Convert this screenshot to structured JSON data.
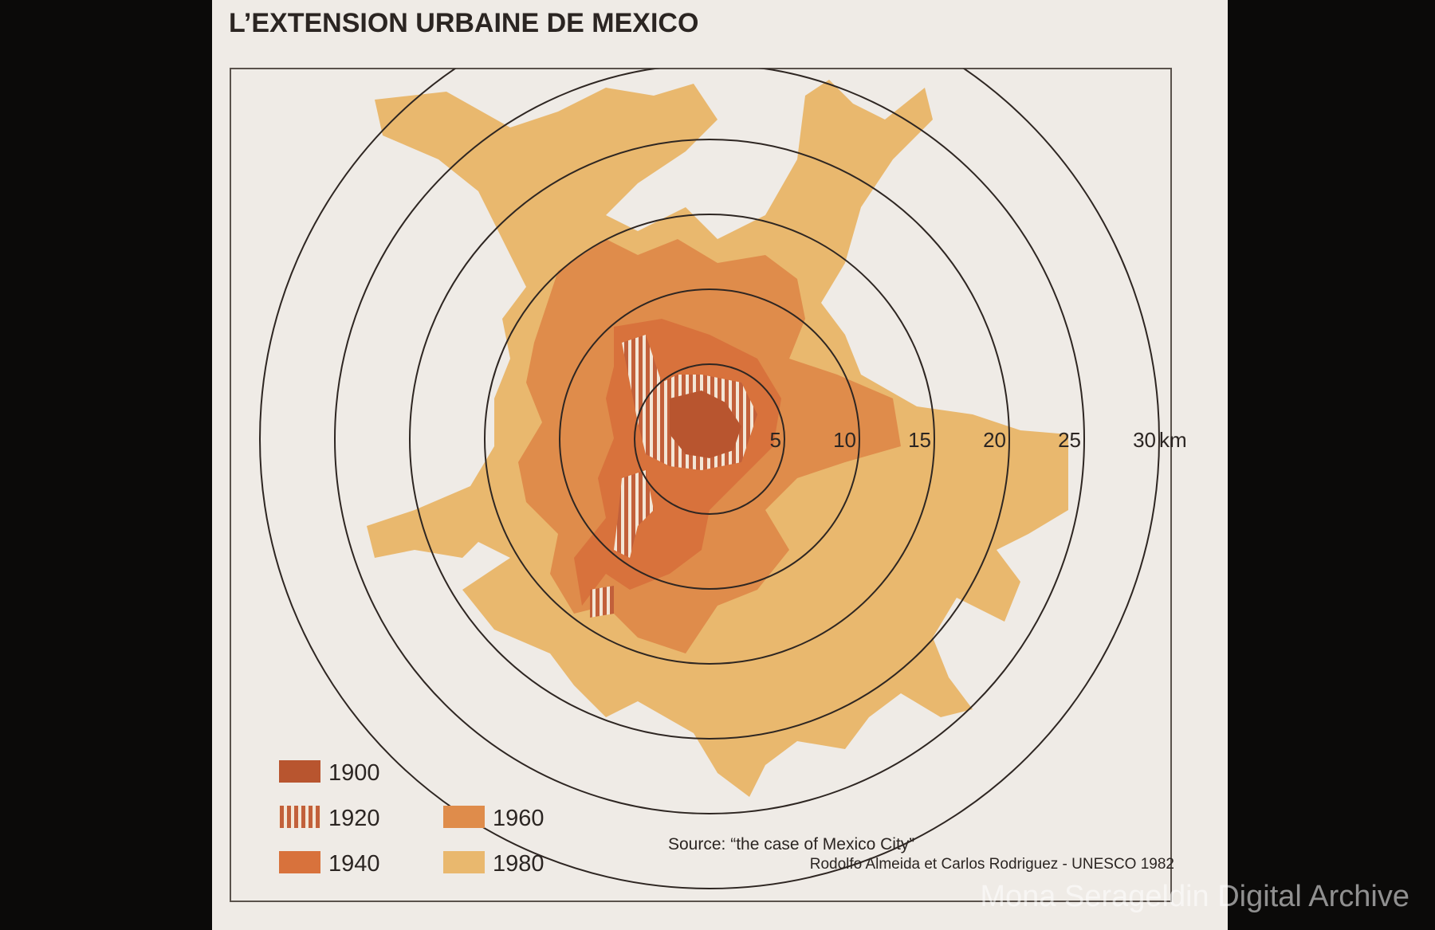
{
  "title": "L’EXTENSION URBAINE DE MEXICO",
  "rings_km": [
    5,
    10,
    15,
    20,
    25,
    30
  ],
  "ring_unit": "km",
  "legend": [
    "1900",
    "1920",
    "1940",
    "1960",
    "1980"
  ],
  "source": {
    "line1": "Source: “the case of Mexico City”",
    "line2": "Rodolfo Almeida et Carlos Rodriguez - UNESCO 1982"
  },
  "watermark": "Mona Serageldin Digital Archive"
}
